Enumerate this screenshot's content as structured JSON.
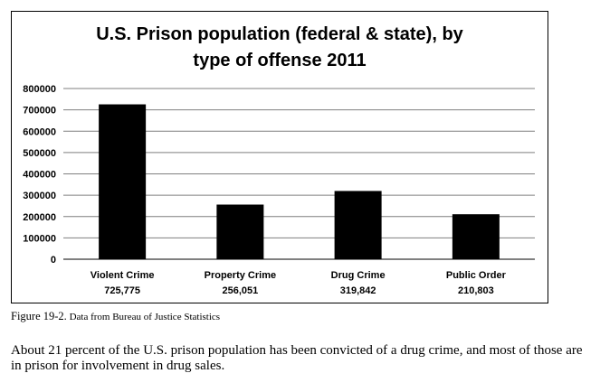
{
  "chart_data": {
    "type": "bar",
    "title": "U.S. Prison population (federal & state), by type of offense 2011",
    "categories": [
      "Violent Crime",
      "Property Crime",
      "Drug Crime",
      "Public Order"
    ],
    "values": [
      725775,
      256051,
      319842,
      210803
    ],
    "value_labels": [
      "725,775",
      "256,051",
      "319,842",
      "210,803"
    ],
    "y_ticks": [
      "0",
      "100000",
      "200000",
      "300000",
      "400000",
      "500000",
      "600000",
      "700000",
      "800000"
    ],
    "ylim": [
      0,
      800000
    ],
    "xlabel": "",
    "ylabel": "",
    "grid": true,
    "bar_color": "#000000"
  },
  "caption": {
    "figure": "Figure 19-2.",
    "source": " Data from Bureau of Justice Statistics"
  },
  "body_text": "About 21 percent of the U.S. prison population has been convicted of a drug crime, and most of those are in prison for involvement in drug sales."
}
